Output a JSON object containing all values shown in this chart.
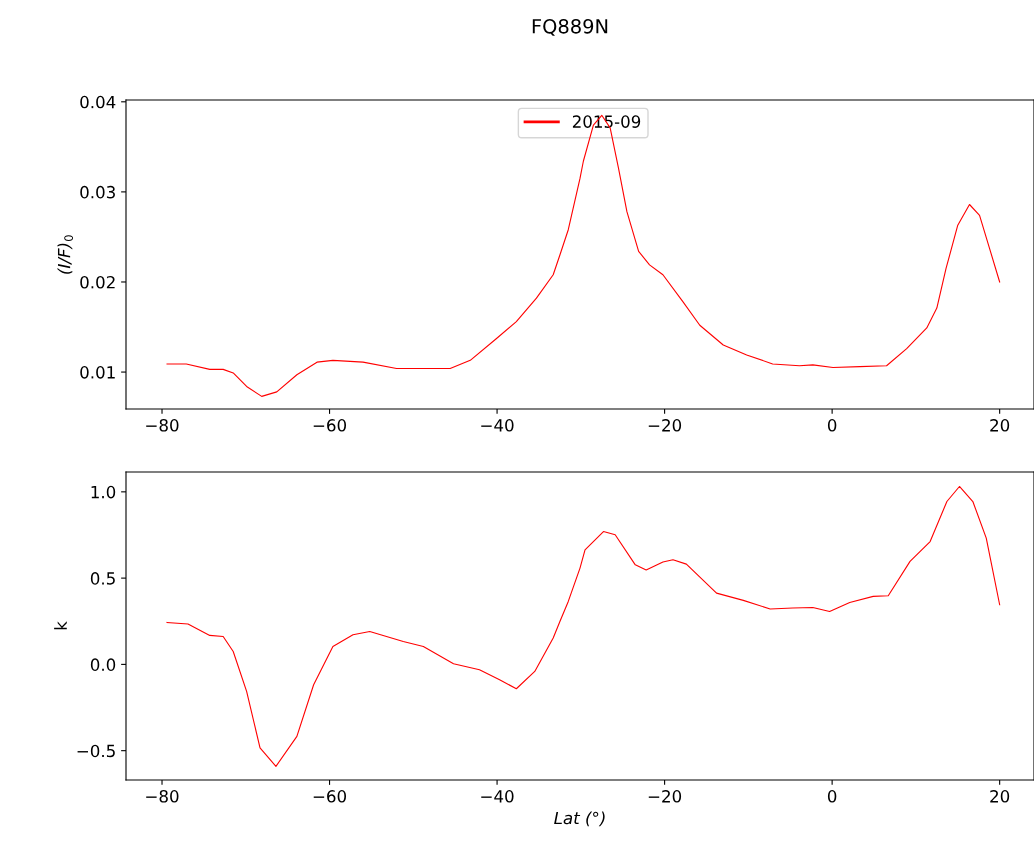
{
  "chart_data": [
    {
      "type": "line",
      "title": "FQ889N",
      "ylabel": "(I/F)$_{0}$",
      "legend": "upper center",
      "grid": false,
      "marker": "none",
      "line_style": "solid",
      "xlim": [
        -84.3,
        24.1
      ],
      "xticks": [
        {
          "value": -80,
          "label": "−80"
        },
        {
          "value": -60,
          "label": "−60"
        },
        {
          "value": -40,
          "label": "−40"
        },
        {
          "value": -20,
          "label": "−20"
        },
        0,
        20
      ],
      "ylim": [
        0.0059,
        0.0402
      ],
      "yticks": [
        0.01,
        0.02,
        0.03,
        0.04
      ],
      "series": [
        {
          "name": "2015-09",
          "color": "#ff0000",
          "x": [
            -79.4,
            -77.1,
            -74.3,
            -72.7,
            -71.5,
            -69.9,
            -68.1,
            -66.3,
            -63.9,
            -61.5,
            -59.6,
            -56.0,
            -52.0,
            -45.6,
            -43.2,
            -40.1,
            -37.7,
            -35.3,
            -33.3,
            -32.5,
            -31.5,
            -30.1,
            -29.7,
            -28.5,
            -27.5,
            -26.5,
            -25.5,
            -24.5,
            -23.1,
            -21.8,
            -20.2,
            -17.8,
            -15.8,
            -13.0,
            -10.2,
            -7.1,
            -3.9,
            -2.3,
            0.1,
            3.3,
            6.5,
            8.9,
            11.3,
            12.5,
            13.6,
            15.0,
            16.4,
            17.6,
            18.8,
            20.0
          ],
          "values": [
            0.0109,
            0.0109,
            0.0103,
            0.0103,
            0.0099,
            0.0084,
            0.0073,
            0.0078,
            0.0097,
            0.0111,
            0.0113,
            0.0111,
            0.0104,
            0.0104,
            0.0113,
            0.0137,
            0.0156,
            0.0182,
            0.0208,
            0.023,
            0.0258,
            0.0315,
            0.0334,
            0.0374,
            0.0385,
            0.0371,
            0.0326,
            0.0278,
            0.0234,
            0.0219,
            0.0208,
            0.0178,
            0.0152,
            0.013,
            0.0119,
            0.0109,
            0.0107,
            0.0108,
            0.0105,
            0.0106,
            0.0107,
            0.0126,
            0.0149,
            0.0171,
            0.0215,
            0.0263,
            0.0286,
            0.0274,
            0.0237,
            0.02
          ]
        }
      ]
    },
    {
      "type": "line",
      "xlabel": "Lat (°)",
      "ylabel": "k",
      "grid": false,
      "marker": "none",
      "line_style": "solid",
      "xlim": [
        -84.3,
        24.1
      ],
      "xticks": [
        {
          "value": -80,
          "label": "−80"
        },
        {
          "value": -60,
          "label": "−60"
        },
        {
          "value": -40,
          "label": "−40"
        },
        {
          "value": -20,
          "label": "−20"
        },
        0,
        20
      ],
      "ylim": [
        -0.67,
        1.115
      ],
      "yticks": [
        {
          "value": -0.5,
          "label": "−0.5"
        },
        {
          "value": 0.0,
          "label": "0.0"
        },
        0.5,
        {
          "value": 1.0,
          "label": "1.0"
        }
      ],
      "series": [
        {
          "color": "#ff0000",
          "x": [
            -79.4,
            -76.9,
            -74.3,
            -72.7,
            -71.5,
            -69.9,
            -68.3,
            -66.4,
            -63.9,
            -61.9,
            -59.6,
            -57.2,
            -55.2,
            -51.2,
            -48.8,
            -45.2,
            -42.1,
            -39.7,
            -37.7,
            -35.5,
            -33.3,
            -32.5,
            -31.5,
            -30.1,
            -29.5,
            -27.3,
            -25.9,
            -23.5,
            -22.2,
            -20.2,
            -19.0,
            -17.4,
            -13.8,
            -10.6,
            -7.4,
            -4.7,
            -2.3,
            -0.3,
            2.1,
            4.9,
            6.7,
            9.3,
            11.7,
            13.7,
            15.2,
            16.8,
            18.4,
            20.0
          ],
          "values": [
            0.243,
            0.234,
            0.168,
            0.162,
            0.075,
            -0.156,
            -0.484,
            -0.591,
            -0.417,
            -0.118,
            0.104,
            0.172,
            0.191,
            0.133,
            0.104,
            0.004,
            -0.031,
            -0.089,
            -0.141,
            -0.041,
            0.153,
            0.249,
            0.365,
            0.558,
            0.664,
            0.77,
            0.751,
            0.577,
            0.547,
            0.593,
            0.606,
            0.581,
            0.413,
            0.371,
            0.321,
            0.327,
            0.33,
            0.307,
            0.359,
            0.394,
            0.398,
            0.597,
            0.712,
            0.944,
            1.031,
            0.944,
            0.732,
            0.346
          ]
        }
      ]
    }
  ]
}
